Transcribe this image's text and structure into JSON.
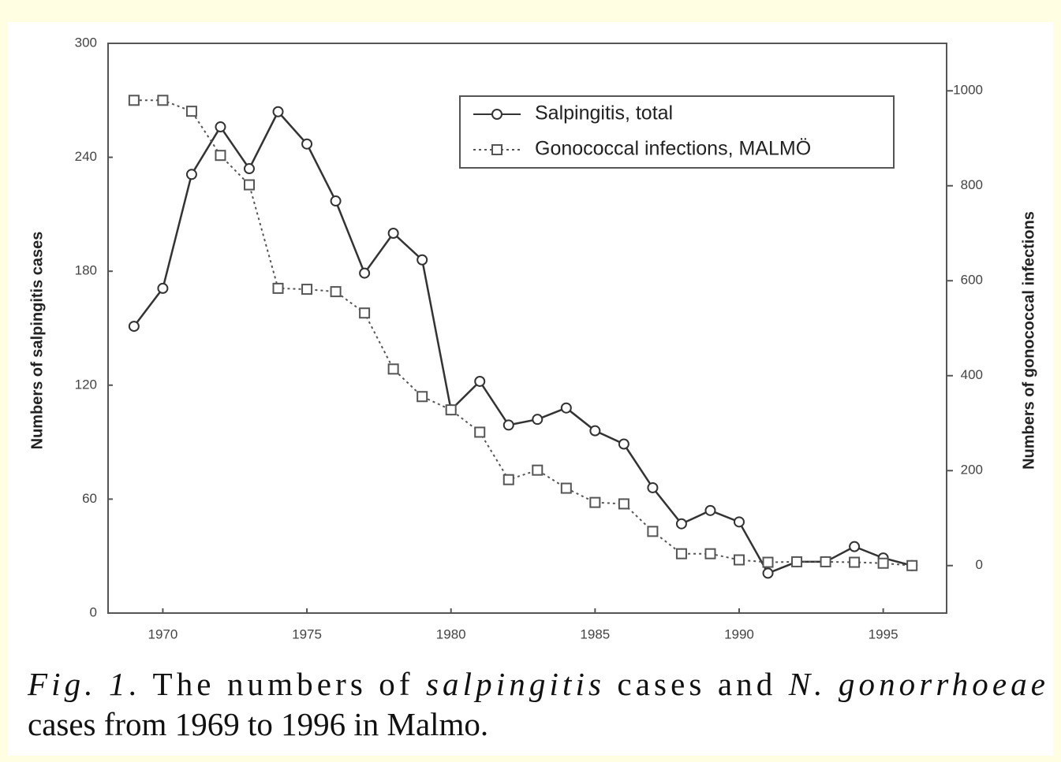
{
  "chart_data": {
    "type": "line",
    "caption": [
      "Fig. 1.",
      " The numbers of ",
      "salpingitis",
      " cases and ",
      "N. gonorrhoeae",
      "cases from 1969 to 1996 in Malmo."
    ],
    "ylabel": "Numbers of salpingitis cases",
    "y2label": "Numbers of gonococcal infections",
    "x": [
      1969,
      1970,
      1971,
      1972,
      1973,
      1974,
      1975,
      1976,
      1977,
      1978,
      1979,
      1980,
      1981,
      1982,
      1983,
      1984,
      1985,
      1986,
      1987,
      1988,
      1989,
      1990,
      1991,
      1992,
      1993,
      1994,
      1995,
      1996
    ],
    "xlim": [
      1968.1,
      1997.2
    ],
    "xticks": [
      1970,
      1975,
      1980,
      1985,
      1990,
      1995
    ],
    "ylim": [
      0,
      300
    ],
    "yticks": [
      0,
      60,
      120,
      180,
      240,
      300
    ],
    "y2lim": [
      -100,
      1100
    ],
    "y2ticks": [
      0,
      200,
      400,
      600,
      800,
      1000
    ],
    "grid": false,
    "legend": "upper right",
    "series": [
      {
        "name": "Salpingitis, total",
        "color": "#333333",
        "marker": "circle",
        "dash": "solid",
        "values": [
          151,
          171,
          231,
          256,
          234,
          264,
          247,
          217,
          179,
          200,
          186,
          107,
          122,
          99,
          102,
          108,
          96,
          89,
          66,
          47,
          54,
          48,
          21,
          27,
          27,
          35,
          29,
          25
        ]
      },
      {
        "name": "Gonococcal infections, MALMÖ",
        "color": "#555555",
        "marker": "square",
        "dash": "dotted",
        "axis": "y2",
        "values": [
          980,
          980,
          957,
          864,
          802,
          584,
          582,
          577,
          532,
          414,
          356,
          328,
          281,
          181,
          201,
          163,
          133,
          130,
          72,
          25,
          25,
          12,
          7,
          8,
          8,
          7,
          5,
          0
        ]
      }
    ]
  }
}
